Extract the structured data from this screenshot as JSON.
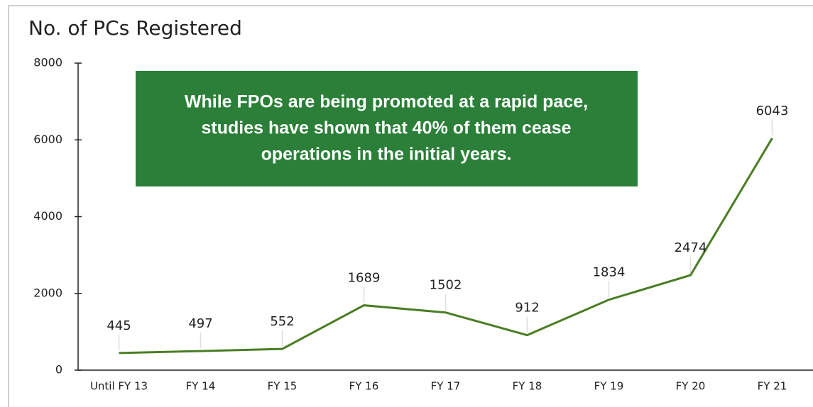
{
  "chart_data": {
    "type": "line",
    "title": "No. of PCs Registered",
    "annotation": [
      "While FPOs are being promoted at a rapid pace,",
      "studies have shown that 40% of them cease",
      "operations in the initial years."
    ],
    "categories": [
      "Until FY 13",
      "FY 14",
      "FY 15",
      "FY 16",
      "FY 17",
      "FY 18",
      "FY 19",
      "FY 20",
      "FY 21"
    ],
    "values": [
      445,
      497,
      552,
      1689,
      1502,
      912,
      1834,
      2474,
      6043
    ],
    "color": "#4a7d23",
    "ylim": [
      0,
      8000
    ],
    "yticks": [
      0,
      2000,
      4000,
      6000,
      8000
    ]
  }
}
